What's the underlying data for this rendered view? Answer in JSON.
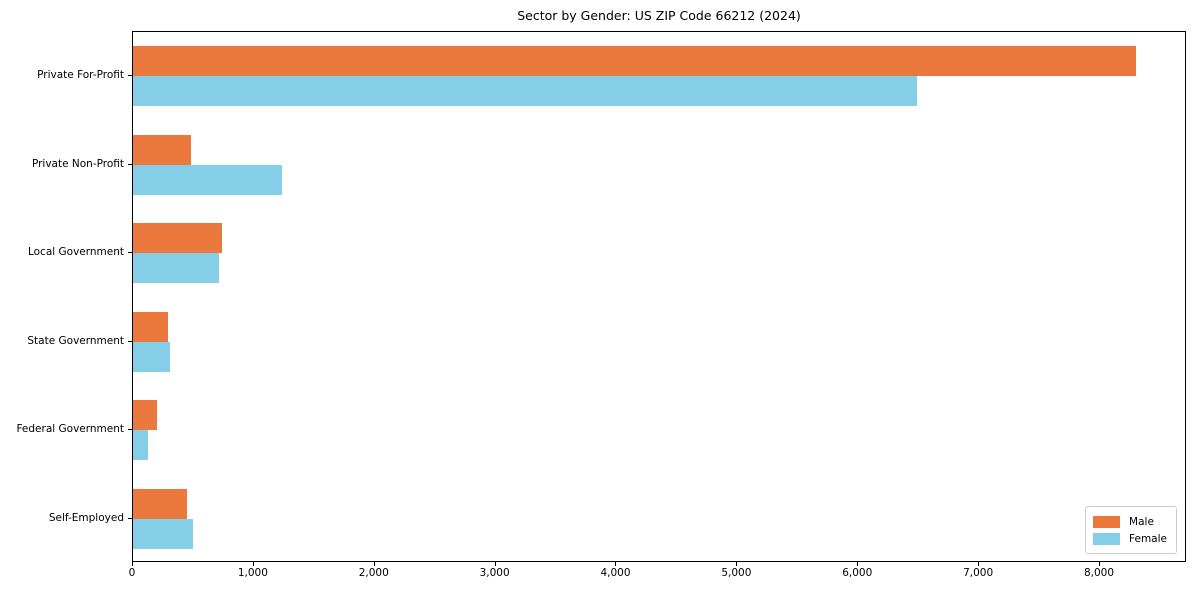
{
  "chart_data": {
    "type": "bar",
    "orientation": "horizontal",
    "title": "Sector by Gender: US ZIP Code 66212 (2024)",
    "categories": [
      "Private For-Profit",
      "Private Non-Profit",
      "Local Government",
      "State Government",
      "Federal Government",
      "Self-Employed"
    ],
    "series": [
      {
        "name": "Male",
        "color": "#EB783C",
        "values": [
          8300,
          480,
          740,
          290,
          200,
          450
        ]
      },
      {
        "name": "Female",
        "color": "#85CEE8",
        "values": [
          6490,
          1230,
          710,
          310,
          120,
          500
        ]
      }
    ],
    "xlim": [
      0,
      8720
    ],
    "xticks": [
      {
        "value": 0,
        "label": "0"
      },
      {
        "value": 1000,
        "label": "1,000"
      },
      {
        "value": 2000,
        "label": "2,000"
      },
      {
        "value": 3000,
        "label": "3,000"
      },
      {
        "value": 4000,
        "label": "4,000"
      },
      {
        "value": 5000,
        "label": "5,000"
      },
      {
        "value": 6000,
        "label": "6,000"
      },
      {
        "value": 7000,
        "label": "7,000"
      },
      {
        "value": 8000,
        "label": "8,000"
      }
    ],
    "xlabel": "",
    "ylabel": "",
    "grid": false,
    "legend": {
      "position": "lower right"
    }
  }
}
